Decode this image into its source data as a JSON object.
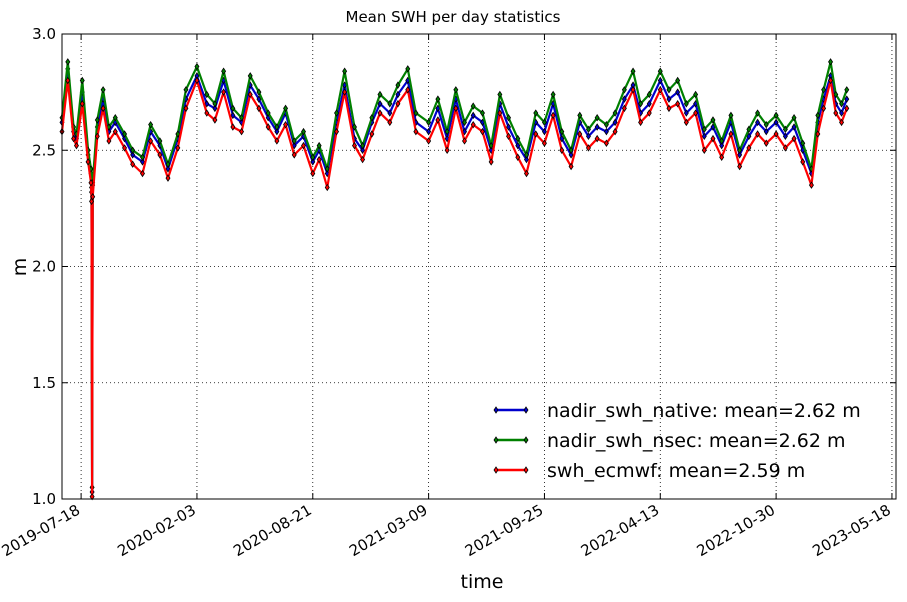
{
  "chart_data": {
    "type": "line",
    "title": "Mean SWH per day statistics",
    "xlabel": "time",
    "ylabel": "m",
    "x_range": [
      "2019-06-15",
      "2023-05-25"
    ],
    "ylim": [
      1.0,
      3.0
    ],
    "yticks": [
      "1.0",
      "1.5",
      "2.0",
      "2.5",
      "3.0"
    ],
    "xticks": [
      "2019-07-18",
      "2020-02-03",
      "2020-08-21",
      "2021-03-09",
      "2021-09-25",
      "2022-04-13",
      "2022-10-30",
      "2023-05-18"
    ],
    "grid": true,
    "legend_position": "lower-right",
    "series": [
      {
        "name": "nadir_swh_native: mean=2.62 m",
        "color": "#0000cc",
        "x": [
          "2019-06-15",
          "2019-06-25",
          "2019-07-05",
          "2019-07-10",
          "2019-07-20",
          "2019-07-30",
          "2019-08-04",
          "2019-08-05",
          "2019-08-06",
          "2019-08-07",
          "2019-08-15",
          "2019-08-25",
          "2019-09-04",
          "2019-09-15",
          "2019-10-01",
          "2019-10-15",
          "2019-11-01",
          "2019-11-15",
          "2019-12-01",
          "2019-12-15",
          "2020-01-01",
          "2020-01-15",
          "2020-02-03",
          "2020-02-20",
          "2020-03-05",
          "2020-03-20",
          "2020-04-05",
          "2020-04-20",
          "2020-05-05",
          "2020-05-20",
          "2020-06-05",
          "2020-06-20",
          "2020-07-05",
          "2020-07-20",
          "2020-08-05",
          "2020-08-21",
          "2020-09-01",
          "2020-09-15",
          "2020-10-01",
          "2020-10-15",
          "2020-11-01",
          "2020-11-15",
          "2020-12-01",
          "2020-12-15",
          "2021-01-01",
          "2021-01-15",
          "2021-02-01",
          "2021-02-15",
          "2021-03-09",
          "2021-03-25",
          "2021-04-10",
          "2021-04-25",
          "2021-05-10",
          "2021-05-25",
          "2021-06-10",
          "2021-06-25",
          "2021-07-10",
          "2021-07-25",
          "2021-08-10",
          "2021-08-25",
          "2021-09-10",
          "2021-09-25",
          "2021-10-10",
          "2021-10-25",
          "2021-11-10",
          "2021-11-25",
          "2021-12-10",
          "2021-12-25",
          "2022-01-10",
          "2022-01-25",
          "2022-02-10",
          "2022-02-25",
          "2022-03-10",
          "2022-03-25",
          "2022-04-13",
          "2022-04-28",
          "2022-05-13",
          "2022-05-28",
          "2022-06-13",
          "2022-06-28",
          "2022-07-13",
          "2022-07-28",
          "2022-08-13",
          "2022-08-28",
          "2022-09-13",
          "2022-09-28",
          "2022-10-13",
          "2022-10-30",
          "2022-11-15",
          "2022-11-30",
          "2022-12-15",
          "2022-12-30",
          "2023-01-10",
          "2023-01-20",
          "2023-02-01",
          "2023-02-10",
          "2023-02-20",
          "2023-03-01"
        ],
        "y": [
          2.62,
          2.85,
          2.58,
          2.55,
          2.75,
          2.48,
          2.4,
          2.32,
          1.03,
          2.35,
          2.6,
          2.72,
          2.58,
          2.62,
          2.55,
          2.48,
          2.45,
          2.58,
          2.52,
          2.42,
          2.55,
          2.72,
          2.82,
          2.7,
          2.68,
          2.8,
          2.65,
          2.62,
          2.78,
          2.72,
          2.64,
          2.58,
          2.66,
          2.52,
          2.56,
          2.45,
          2.5,
          2.4,
          2.62,
          2.78,
          2.55,
          2.5,
          2.62,
          2.7,
          2.66,
          2.74,
          2.8,
          2.62,
          2.58,
          2.68,
          2.55,
          2.72,
          2.58,
          2.65,
          2.62,
          2.5,
          2.7,
          2.6,
          2.52,
          2.46,
          2.62,
          2.58,
          2.7,
          2.55,
          2.48,
          2.62,
          2.56,
          2.6,
          2.58,
          2.62,
          2.72,
          2.78,
          2.66,
          2.7,
          2.8,
          2.72,
          2.75,
          2.66,
          2.7,
          2.56,
          2.6,
          2.52,
          2.62,
          2.48,
          2.56,
          2.62,
          2.58,
          2.62,
          2.56,
          2.6,
          2.5,
          2.4,
          2.62,
          2.72,
          2.82,
          2.7,
          2.66,
          2.72
        ]
      },
      {
        "name": "nadir_swh_nsec: mean=2.62 m",
        "color": "#008000",
        "x": [
          "2019-06-15",
          "2019-06-25",
          "2019-07-05",
          "2019-07-10",
          "2019-07-20",
          "2019-07-30",
          "2019-08-04",
          "2019-08-05",
          "2019-08-06",
          "2019-08-07",
          "2019-08-15",
          "2019-08-25",
          "2019-09-04",
          "2019-09-15",
          "2019-10-01",
          "2019-10-15",
          "2019-11-01",
          "2019-11-15",
          "2019-12-01",
          "2019-12-15",
          "2020-01-01",
          "2020-01-15",
          "2020-02-03",
          "2020-02-20",
          "2020-03-05",
          "2020-03-20",
          "2020-04-05",
          "2020-04-20",
          "2020-05-05",
          "2020-05-20",
          "2020-06-05",
          "2020-06-20",
          "2020-07-05",
          "2020-07-20",
          "2020-08-05",
          "2020-08-21",
          "2020-09-01",
          "2020-09-15",
          "2020-10-01",
          "2020-10-15",
          "2020-11-01",
          "2020-11-15",
          "2020-12-01",
          "2020-12-15",
          "2021-01-01",
          "2021-01-15",
          "2021-02-01",
          "2021-02-15",
          "2021-03-09",
          "2021-03-25",
          "2021-04-10",
          "2021-04-25",
          "2021-05-10",
          "2021-05-25",
          "2021-06-10",
          "2021-06-25",
          "2021-07-10",
          "2021-07-25",
          "2021-08-10",
          "2021-08-25",
          "2021-09-10",
          "2021-09-25",
          "2021-10-10",
          "2021-10-25",
          "2021-11-10",
          "2021-11-25",
          "2021-12-10",
          "2021-12-25",
          "2022-01-10",
          "2022-01-25",
          "2022-02-10",
          "2022-02-25",
          "2022-03-10",
          "2022-03-25",
          "2022-04-13",
          "2022-04-28",
          "2022-05-13",
          "2022-05-28",
          "2022-06-13",
          "2022-06-28",
          "2022-07-13",
          "2022-07-28",
          "2022-08-13",
          "2022-08-28",
          "2022-09-13",
          "2022-09-28",
          "2022-10-13",
          "2022-10-30",
          "2022-11-15",
          "2022-11-30",
          "2022-12-15",
          "2022-12-30",
          "2023-01-10",
          "2023-01-20",
          "2023-02-01",
          "2023-02-10",
          "2023-02-20",
          "2023-03-01"
        ],
        "y": [
          2.64,
          2.88,
          2.6,
          2.57,
          2.8,
          2.5,
          2.42,
          2.34,
          1.05,
          2.36,
          2.63,
          2.76,
          2.6,
          2.64,
          2.57,
          2.5,
          2.47,
          2.61,
          2.54,
          2.44,
          2.57,
          2.76,
          2.86,
          2.74,
          2.7,
          2.84,
          2.68,
          2.64,
          2.82,
          2.75,
          2.66,
          2.6,
          2.68,
          2.54,
          2.58,
          2.47,
          2.52,
          2.42,
          2.66,
          2.84,
          2.6,
          2.52,
          2.64,
          2.74,
          2.7,
          2.78,
          2.85,
          2.66,
          2.62,
          2.72,
          2.58,
          2.76,
          2.62,
          2.69,
          2.66,
          2.52,
          2.74,
          2.64,
          2.55,
          2.48,
          2.66,
          2.62,
          2.74,
          2.58,
          2.5,
          2.65,
          2.59,
          2.64,
          2.61,
          2.66,
          2.76,
          2.84,
          2.7,
          2.74,
          2.84,
          2.76,
          2.8,
          2.7,
          2.74,
          2.59,
          2.63,
          2.54,
          2.65,
          2.5,
          2.59,
          2.66,
          2.61,
          2.65,
          2.59,
          2.64,
          2.53,
          2.42,
          2.65,
          2.76,
          2.88,
          2.74,
          2.7,
          2.76
        ]
      },
      {
        "name": "swh_ecmwf: mean=2.59 m",
        "color": "#ff0000",
        "x": [
          "2019-06-15",
          "2019-06-25",
          "2019-07-05",
          "2019-07-10",
          "2019-07-20",
          "2019-07-30",
          "2019-08-04",
          "2019-08-05",
          "2019-08-06",
          "2019-08-07",
          "2019-08-15",
          "2019-08-25",
          "2019-09-04",
          "2019-09-15",
          "2019-10-01",
          "2019-10-15",
          "2019-11-01",
          "2019-11-15",
          "2019-12-01",
          "2019-12-15",
          "2020-01-01",
          "2020-01-15",
          "2020-02-03",
          "2020-02-20",
          "2020-03-05",
          "2020-03-20",
          "2020-04-05",
          "2020-04-20",
          "2020-05-05",
          "2020-05-20",
          "2020-06-05",
          "2020-06-20",
          "2020-07-05",
          "2020-07-20",
          "2020-08-05",
          "2020-08-21",
          "2020-09-01",
          "2020-09-15",
          "2020-10-01",
          "2020-10-15",
          "2020-11-01",
          "2020-11-15",
          "2020-12-01",
          "2020-12-15",
          "2021-01-01",
          "2021-01-15",
          "2021-02-01",
          "2021-02-15",
          "2021-03-09",
          "2021-03-25",
          "2021-04-10",
          "2021-04-25",
          "2021-05-10",
          "2021-05-25",
          "2021-06-10",
          "2021-06-25",
          "2021-07-10",
          "2021-07-25",
          "2021-08-10",
          "2021-08-25",
          "2021-09-10",
          "2021-09-25",
          "2021-10-10",
          "2021-10-25",
          "2021-11-10",
          "2021-11-25",
          "2021-12-10",
          "2021-12-25",
          "2022-01-10",
          "2022-01-25",
          "2022-02-10",
          "2022-02-25",
          "2022-03-10",
          "2022-03-25",
          "2022-04-13",
          "2022-04-28",
          "2022-05-13",
          "2022-05-28",
          "2022-06-13",
          "2022-06-28",
          "2022-07-13",
          "2022-07-28",
          "2022-08-13",
          "2022-08-28",
          "2022-09-13",
          "2022-09-28",
          "2022-10-13",
          "2022-10-30",
          "2022-11-15",
          "2022-11-30",
          "2022-12-15",
          "2022-12-30",
          "2023-01-10",
          "2023-01-20",
          "2023-02-01",
          "2023-02-10",
          "2023-02-20",
          "2023-03-01"
        ],
        "y": [
          2.58,
          2.8,
          2.55,
          2.52,
          2.7,
          2.45,
          2.36,
          2.28,
          1.01,
          2.3,
          2.56,
          2.68,
          2.54,
          2.58,
          2.51,
          2.44,
          2.4,
          2.54,
          2.48,
          2.38,
          2.51,
          2.68,
          2.8,
          2.66,
          2.63,
          2.75,
          2.6,
          2.58,
          2.74,
          2.68,
          2.6,
          2.54,
          2.61,
          2.48,
          2.52,
          2.4,
          2.46,
          2.34,
          2.58,
          2.75,
          2.52,
          2.46,
          2.57,
          2.66,
          2.62,
          2.7,
          2.76,
          2.58,
          2.54,
          2.63,
          2.5,
          2.68,
          2.54,
          2.61,
          2.58,
          2.45,
          2.66,
          2.56,
          2.47,
          2.4,
          2.57,
          2.53,
          2.65,
          2.5,
          2.43,
          2.57,
          2.51,
          2.55,
          2.53,
          2.58,
          2.68,
          2.76,
          2.62,
          2.66,
          2.76,
          2.68,
          2.7,
          2.62,
          2.66,
          2.5,
          2.55,
          2.47,
          2.57,
          2.43,
          2.51,
          2.57,
          2.53,
          2.57,
          2.51,
          2.55,
          2.45,
          2.35,
          2.57,
          2.68,
          2.8,
          2.66,
          2.62,
          2.68
        ]
      }
    ]
  }
}
